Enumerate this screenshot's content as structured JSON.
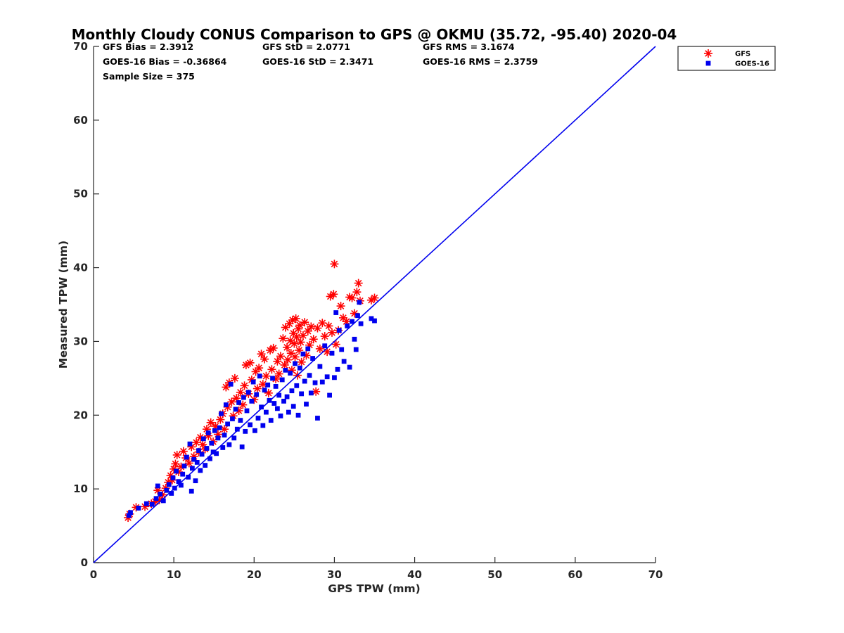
{
  "chart_data": {
    "type": "scatter",
    "title": "Monthly Cloudy CONUS Comparison to GPS @ OKMU (35.72, -95.40) 2020-04",
    "xlabel": "GPS TPW (mm)",
    "ylabel": "Measured TPW (mm)",
    "xlim": [
      0,
      70
    ],
    "ylim": [
      0,
      70
    ],
    "xticks": [
      "0",
      "10",
      "20",
      "30",
      "40",
      "50",
      "60",
      "70"
    ],
    "yticks": [
      "0",
      "10",
      "20",
      "30",
      "40",
      "50",
      "60",
      "70"
    ],
    "grid": false,
    "legend_position": "top-right",
    "stats": [
      [
        "GFS Bias = 2.3912",
        "GFS StD = 2.0771",
        "GFS RMS = 3.1674"
      ],
      [
        "GOES-16 Bias = -0.36864",
        "GOES-16 StD = 2.3471",
        "GOES-16 RMS = 2.3759"
      ],
      [
        "Sample Size = 375",
        "",
        ""
      ]
    ],
    "reference_line": {
      "x": [
        0,
        70
      ],
      "y": [
        0,
        70
      ],
      "color": "#0000ee"
    },
    "series": [
      {
        "name": "GFS",
        "marker": "asterisk",
        "color": "#ff0000",
        "points": [
          [
            4.3,
            6.1
          ],
          [
            4.5,
            6.6
          ],
          [
            5.3,
            7.5
          ],
          [
            6.4,
            7.6
          ],
          [
            7.2,
            8.0
          ],
          [
            7.7,
            8.3
          ],
          [
            8.0,
            9.8
          ],
          [
            8.2,
            8.5
          ],
          [
            8.6,
            9.2
          ],
          [
            9.0,
            10.1
          ],
          [
            9.3,
            10.9
          ],
          [
            9.6,
            11.8
          ],
          [
            9.8,
            11.2
          ],
          [
            10.0,
            12.7
          ],
          [
            10.2,
            13.4
          ],
          [
            10.4,
            14.6
          ],
          [
            10.6,
            12.3
          ],
          [
            10.9,
            13.0
          ],
          [
            11.2,
            15.1
          ],
          [
            11.5,
            14.2
          ],
          [
            11.9,
            13.5
          ],
          [
            12.2,
            15.7
          ],
          [
            12.5,
            14.4
          ],
          [
            12.8,
            16.3
          ],
          [
            13.1,
            15.0
          ],
          [
            13.3,
            17.0
          ],
          [
            13.6,
            16.0
          ],
          [
            13.9,
            15.4
          ],
          [
            14.1,
            18.1
          ],
          [
            14.3,
            17.2
          ],
          [
            14.6,
            19.0
          ],
          [
            14.9,
            16.4
          ],
          [
            15.2,
            18.5
          ],
          [
            15.5,
            17.4
          ],
          [
            15.8,
            19.4
          ],
          [
            16.1,
            20.2
          ],
          [
            16.3,
            18.1
          ],
          [
            16.5,
            23.8
          ],
          [
            16.7,
            21.1
          ],
          [
            16.9,
            24.4
          ],
          [
            17.2,
            21.8
          ],
          [
            17.4,
            19.9
          ],
          [
            17.6,
            25.0
          ],
          [
            17.8,
            22.3
          ],
          [
            18.1,
            20.6
          ],
          [
            18.3,
            23.1
          ],
          [
            18.6,
            21.4
          ],
          [
            18.8,
            24.0
          ],
          [
            19.0,
            26.8
          ],
          [
            19.3,
            22.9
          ],
          [
            19.5,
            27.1
          ],
          [
            19.7,
            24.8
          ],
          [
            20.0,
            22.1
          ],
          [
            20.2,
            25.9
          ],
          [
            20.4,
            23.6
          ],
          [
            20.6,
            26.4
          ],
          [
            20.9,
            28.3
          ],
          [
            21.1,
            24.2
          ],
          [
            21.3,
            27.6
          ],
          [
            21.5,
            25.3
          ],
          [
            21.8,
            23.0
          ],
          [
            22.0,
            28.8
          ],
          [
            22.2,
            26.2
          ],
          [
            22.4,
            29.1
          ],
          [
            22.7,
            24.9
          ],
          [
            22.9,
            27.3
          ],
          [
            23.1,
            25.6
          ],
          [
            23.3,
            28.0
          ],
          [
            23.6,
            30.4
          ],
          [
            23.8,
            26.8
          ],
          [
            23.9,
            31.9
          ],
          [
            24.1,
            29.2
          ],
          [
            24.2,
            27.5
          ],
          [
            24.4,
            32.4
          ],
          [
            24.5,
            30.1
          ],
          [
            24.6,
            28.4
          ],
          [
            24.7,
            26.1
          ],
          [
            24.8,
            32.9
          ],
          [
            24.9,
            31.1
          ],
          [
            25.0,
            29.7
          ],
          [
            25.1,
            27.9
          ],
          [
            25.2,
            33.1
          ],
          [
            25.3,
            30.6
          ],
          [
            25.4,
            25.4
          ],
          [
            25.5,
            31.7
          ],
          [
            25.6,
            28.8
          ],
          [
            25.7,
            32.2
          ],
          [
            25.8,
            29.9
          ],
          [
            25.9,
            27.2
          ],
          [
            26.1,
            30.8
          ],
          [
            26.3,
            32.6
          ],
          [
            26.5,
            28.1
          ],
          [
            26.7,
            31.4
          ],
          [
            26.9,
            29.5
          ],
          [
            27.1,
            32.0
          ],
          [
            27.4,
            30.3
          ],
          [
            27.7,
            23.2
          ],
          [
            27.9,
            31.8
          ],
          [
            28.2,
            29.0
          ],
          [
            28.5,
            32.5
          ],
          [
            28.8,
            30.7
          ],
          [
            29.1,
            28.6
          ],
          [
            29.3,
            32.1
          ],
          [
            29.5,
            36.1
          ],
          [
            29.7,
            31.2
          ],
          [
            29.9,
            36.4
          ],
          [
            30.0,
            40.5
          ],
          [
            30.2,
            29.6
          ],
          [
            30.5,
            31.5
          ],
          [
            30.8,
            34.8
          ],
          [
            31.1,
            33.2
          ],
          [
            31.5,
            32.7
          ],
          [
            31.9,
            36.0
          ],
          [
            32.2,
            35.9
          ],
          [
            32.5,
            33.8
          ],
          [
            32.8,
            36.7
          ],
          [
            33.0,
            37.9
          ],
          [
            33.2,
            35.5
          ],
          [
            34.6,
            35.6
          ],
          [
            35.0,
            35.9
          ]
        ]
      },
      {
        "name": "GOES-16",
        "marker": "square",
        "color": "#0000ee",
        "points": [
          [
            4.4,
            6.4
          ],
          [
            4.6,
            6.8
          ],
          [
            5.6,
            7.4
          ],
          [
            6.6,
            8.0
          ],
          [
            7.3,
            7.9
          ],
          [
            7.8,
            8.7
          ],
          [
            8.0,
            10.4
          ],
          [
            8.3,
            9.3
          ],
          [
            8.7,
            8.4
          ],
          [
            9.1,
            9.8
          ],
          [
            9.4,
            10.6
          ],
          [
            9.7,
            9.4
          ],
          [
            9.9,
            11.5
          ],
          [
            10.1,
            10.1
          ],
          [
            10.3,
            12.4
          ],
          [
            10.6,
            11.0
          ],
          [
            10.9,
            10.5
          ],
          [
            11.1,
            12.0
          ],
          [
            11.3,
            13.1
          ],
          [
            11.6,
            14.3
          ],
          [
            11.8,
            11.6
          ],
          [
            12.0,
            16.1
          ],
          [
            12.2,
            9.7
          ],
          [
            12.3,
            12.8
          ],
          [
            12.5,
            14.0
          ],
          [
            12.7,
            11.1
          ],
          [
            12.9,
            13.6
          ],
          [
            13.1,
            15.2
          ],
          [
            13.3,
            12.5
          ],
          [
            13.5,
            14.7
          ],
          [
            13.7,
            16.8
          ],
          [
            13.9,
            13.2
          ],
          [
            14.1,
            15.5
          ],
          [
            14.3,
            17.6
          ],
          [
            14.5,
            14.1
          ],
          [
            14.7,
            16.2
          ],
          [
            14.9,
            15.0
          ],
          [
            15.1,
            17.9
          ],
          [
            15.3,
            14.8
          ],
          [
            15.5,
            16.9
          ],
          [
            15.7,
            18.3
          ],
          [
            15.9,
            20.2
          ],
          [
            16.1,
            15.6
          ],
          [
            16.3,
            17.3
          ],
          [
            16.5,
            21.4
          ],
          [
            16.7,
            18.8
          ],
          [
            16.9,
            16.0
          ],
          [
            17.1,
            24.2
          ],
          [
            17.3,
            19.5
          ],
          [
            17.5,
            16.9
          ],
          [
            17.7,
            20.8
          ],
          [
            17.9,
            18.1
          ],
          [
            18.1,
            21.7
          ],
          [
            18.3,
            19.3
          ],
          [
            18.5,
            15.7
          ],
          [
            18.7,
            22.4
          ],
          [
            18.9,
            17.8
          ],
          [
            19.1,
            20.6
          ],
          [
            19.3,
            23.1
          ],
          [
            19.5,
            18.7
          ],
          [
            19.7,
            21.9
          ],
          [
            19.9,
            24.5
          ],
          [
            20.1,
            17.9
          ],
          [
            20.3,
            22.8
          ],
          [
            20.5,
            19.6
          ],
          [
            20.7,
            25.3
          ],
          [
            20.9,
            21.1
          ],
          [
            21.1,
            18.6
          ],
          [
            21.3,
            23.4
          ],
          [
            21.5,
            20.4
          ],
          [
            21.7,
            24.1
          ],
          [
            21.9,
            22.0
          ],
          [
            22.1,
            19.3
          ],
          [
            22.3,
            25.0
          ],
          [
            22.5,
            21.6
          ],
          [
            22.7,
            23.9
          ],
          [
            22.9,
            20.9
          ],
          [
            23.1,
            22.7
          ],
          [
            23.3,
            19.9
          ],
          [
            23.5,
            24.8
          ],
          [
            23.7,
            21.9
          ],
          [
            23.9,
            26.1
          ],
          [
            24.1,
            22.5
          ],
          [
            24.3,
            20.4
          ],
          [
            24.5,
            25.7
          ],
          [
            24.7,
            23.3
          ],
          [
            24.9,
            21.2
          ],
          [
            25.1,
            27.0
          ],
          [
            25.3,
            24.0
          ],
          [
            25.5,
            20.0
          ],
          [
            25.7,
            26.4
          ],
          [
            25.9,
            22.9
          ],
          [
            26.1,
            28.3
          ],
          [
            26.3,
            24.6
          ],
          [
            26.5,
            21.5
          ],
          [
            26.7,
            29.0
          ],
          [
            26.9,
            25.4
          ],
          [
            27.1,
            23.0
          ],
          [
            27.3,
            27.7
          ],
          [
            27.6,
            24.4
          ],
          [
            27.9,
            19.6
          ],
          [
            28.2,
            26.6
          ],
          [
            28.5,
            24.5
          ],
          [
            28.8,
            29.4
          ],
          [
            29.1,
            25.2
          ],
          [
            29.4,
            22.7
          ],
          [
            29.7,
            28.4
          ],
          [
            30.0,
            25.1
          ],
          [
            30.2,
            33.9
          ],
          [
            30.4,
            26.2
          ],
          [
            30.6,
            31.5
          ],
          [
            30.9,
            28.9
          ],
          [
            31.2,
            27.3
          ],
          [
            31.6,
            32.1
          ],
          [
            31.9,
            26.5
          ],
          [
            32.2,
            32.7
          ],
          [
            32.5,
            30.3
          ],
          [
            32.7,
            28.9
          ],
          [
            32.9,
            33.5
          ],
          [
            33.1,
            35.3
          ],
          [
            33.3,
            32.4
          ],
          [
            34.6,
            33.1
          ],
          [
            35.0,
            32.8
          ]
        ]
      }
    ]
  }
}
